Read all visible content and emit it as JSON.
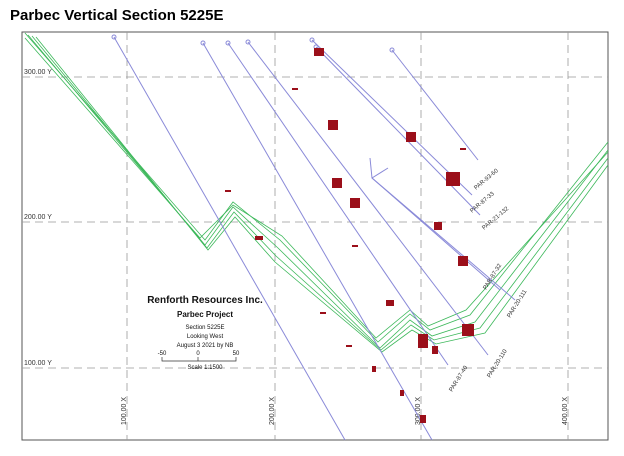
{
  "header": {
    "title": "Parbec Vertical Section 5225E"
  },
  "y_axis": {
    "labels": [
      "300.00 Y",
      "200.00 Y",
      "100.00 Y"
    ]
  },
  "x_axis": {
    "labels": [
      "100.00 X",
      "200.00 X",
      "300.00 X",
      "400.00 X"
    ]
  },
  "holes": {
    "labels": [
      "PAR-93-60",
      "PAR-87-33",
      "PAR-21-132",
      "PAR-87-32",
      "PAR-20-111",
      "PAR-87-40",
      "PAR-20-110"
    ]
  },
  "title_block": {
    "company": "Renforth Resources Inc.",
    "project": "Parbec Project",
    "section": "Section 5225E",
    "view": "Looking West",
    "date": "August 3 2021 by NB",
    "scale_ticks": [
      "-50",
      "0",
      "50"
    ],
    "scale": "Scale 1:1500"
  }
}
